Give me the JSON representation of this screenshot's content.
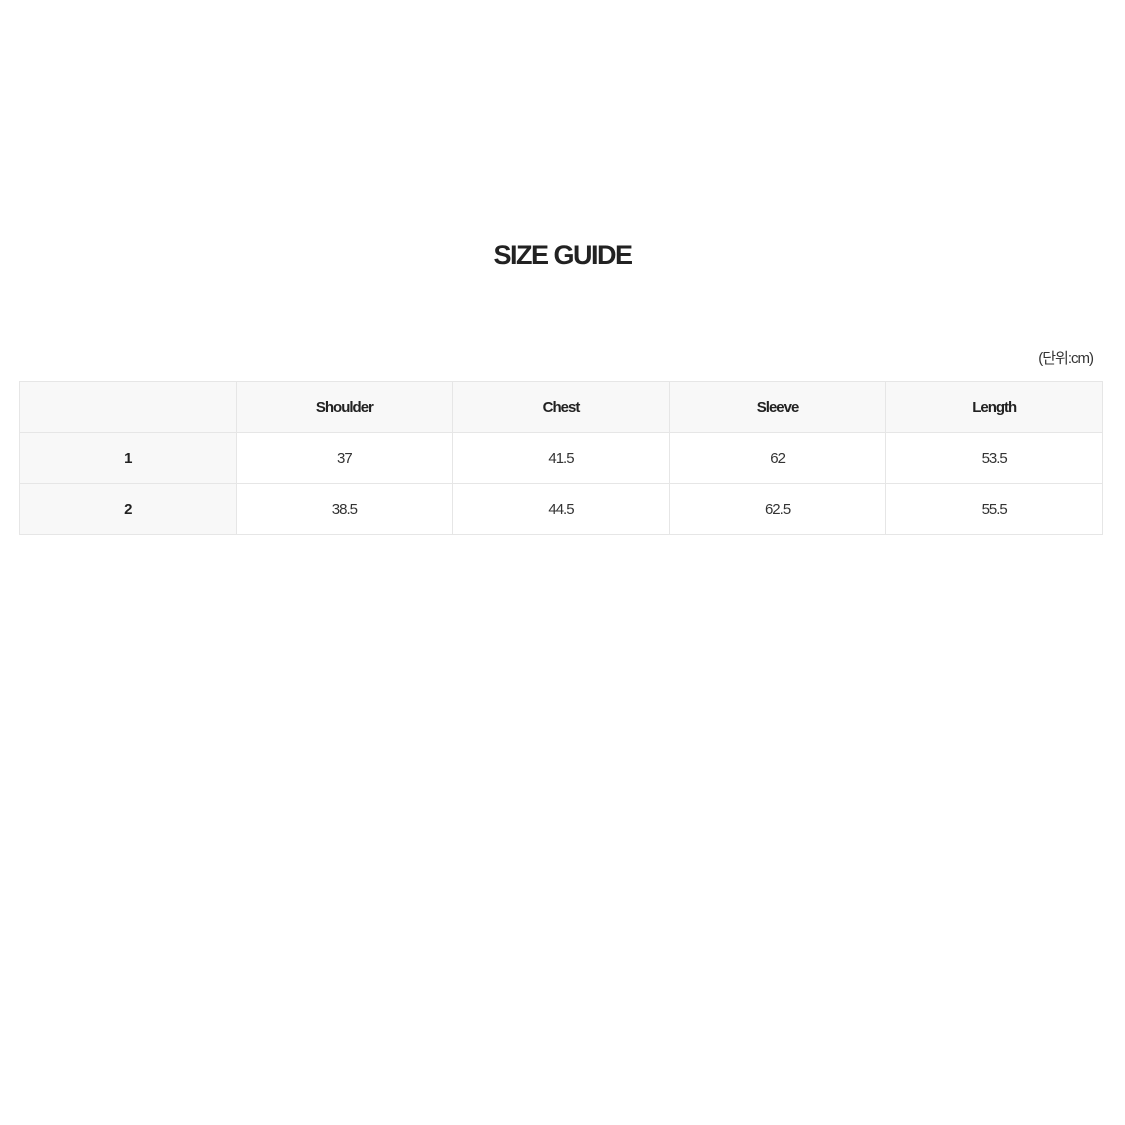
{
  "title": "SIZE GUIDE",
  "unit_note": "(단위:cm)",
  "table": {
    "headers": [
      "",
      "Shoulder",
      "Chest",
      "Sleeve",
      "Length"
    ],
    "rows": [
      [
        "1",
        "37",
        "41.5",
        "62",
        "53.5"
      ],
      [
        "2",
        "38.5",
        "44.5",
        "62.5",
        "55.5"
      ]
    ]
  }
}
